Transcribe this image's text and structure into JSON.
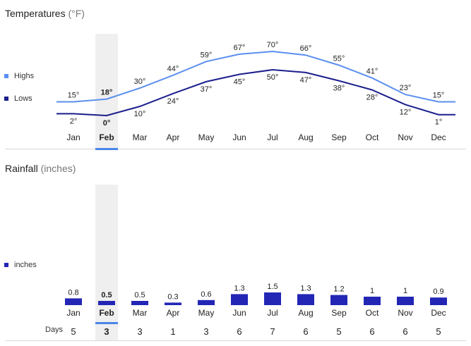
{
  "temperatures": {
    "title": "Temperatures",
    "unit": "(°F)"
  },
  "rainfall": {
    "title": "Rainfall",
    "unit": "(inches)",
    "days_label": "Days"
  },
  "selected_month": "Feb",
  "colors": {
    "highs": "#5b8ff0",
    "lows": "#1a1e8c",
    "bars": "#2326b5",
    "selected_band": "#efefef",
    "selected_underline": "#4a86e8"
  },
  "chart_data": [
    {
      "type": "line",
      "title": "Temperatures",
      "categories": [
        "Jan",
        "Feb",
        "Mar",
        "Apr",
        "May",
        "Jun",
        "Jul",
        "Aug",
        "Sep",
        "Oct",
        "Nov",
        "Dec"
      ],
      "series": [
        {
          "name": "Highs",
          "values": [
            15,
            18,
            30,
            44,
            59,
            67,
            70,
            66,
            55,
            41,
            23,
            15
          ],
          "labels": [
            "15°",
            "18°",
            "30°",
            "44°",
            "59°",
            "67°",
            "70°",
            "66°",
            "55°",
            "41°",
            "23°",
            "15°"
          ]
        },
        {
          "name": "Lows",
          "values": [
            2,
            0,
            10,
            24,
            37,
            45,
            50,
            47,
            38,
            28,
            12,
            1
          ],
          "labels": [
            "2°",
            "0°",
            "10°",
            "24°",
            "37°",
            "45°",
            "50°",
            "47°",
            "38°",
            "28°",
            "12°",
            "1°"
          ]
        }
      ],
      "legend": "left",
      "grid": false
    },
    {
      "type": "bar",
      "title": "Rainfall",
      "categories": [
        "Jan",
        "Feb",
        "Mar",
        "Apr",
        "May",
        "Jun",
        "Jul",
        "Aug",
        "Sep",
        "Oct",
        "Nov",
        "Dec"
      ],
      "series": [
        {
          "name": "inches",
          "values": [
            0.8,
            0.5,
            0.5,
            0.3,
            0.6,
            1.3,
            1.5,
            1.3,
            1.2,
            1,
            1,
            0.9
          ],
          "labels": [
            "0.8",
            "0.5",
            "0.5",
            "0.3",
            "0.6",
            "1.3",
            "1.5",
            "1.3",
            "1.2",
            "1",
            "1",
            "0.9"
          ]
        }
      ],
      "days": [
        "5",
        "3",
        "3",
        "1",
        "3",
        "6",
        "7",
        "6",
        "5",
        "6",
        "6",
        "5"
      ],
      "legend": "left",
      "grid": false
    }
  ]
}
